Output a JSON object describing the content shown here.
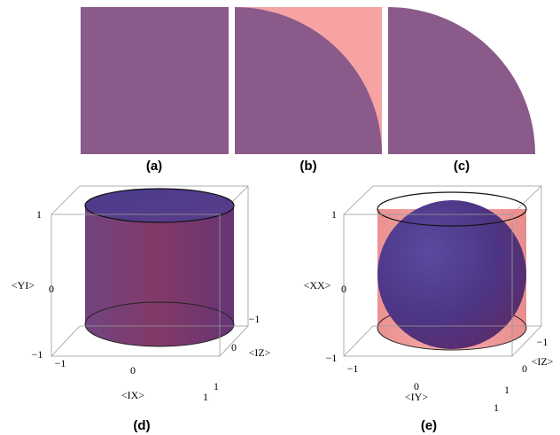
{
  "panels": {
    "a": {
      "label": "(a)"
    },
    "b": {
      "label": "(b)"
    },
    "c": {
      "label": "(c)"
    },
    "d": {
      "label": "(d)",
      "y_axis_label": "<YI>",
      "x_axis_label": "<IX>",
      "z_axis_label": "<IZ>",
      "ticks": {
        "top": "1",
        "mid": "0",
        "bottom": "−1",
        "x_left": "−1",
        "x_mid": "0",
        "x_right": "1",
        "z_top": "−1",
        "z_mid": "0",
        "z_bottom": "1"
      }
    },
    "e": {
      "label": "(e)",
      "y_axis_label": "<XX>",
      "x_axis_label": "<IY>",
      "z_axis_label": "<IZ>",
      "ticks": {
        "top": "1",
        "mid": "0",
        "bottom": "−1",
        "x_left": "−1",
        "x_mid": "0",
        "x_right": "1",
        "z_top": "−1",
        "z_mid": "0",
        "z_bottom": "1"
      }
    }
  },
  "colors": {
    "purple": "#8a5a8a",
    "pink": "#f7a3a3",
    "cylinder_purple": "#6a2e66",
    "sphere_blue": "#4a3d86",
    "salmon": "#ee8a8a"
  }
}
